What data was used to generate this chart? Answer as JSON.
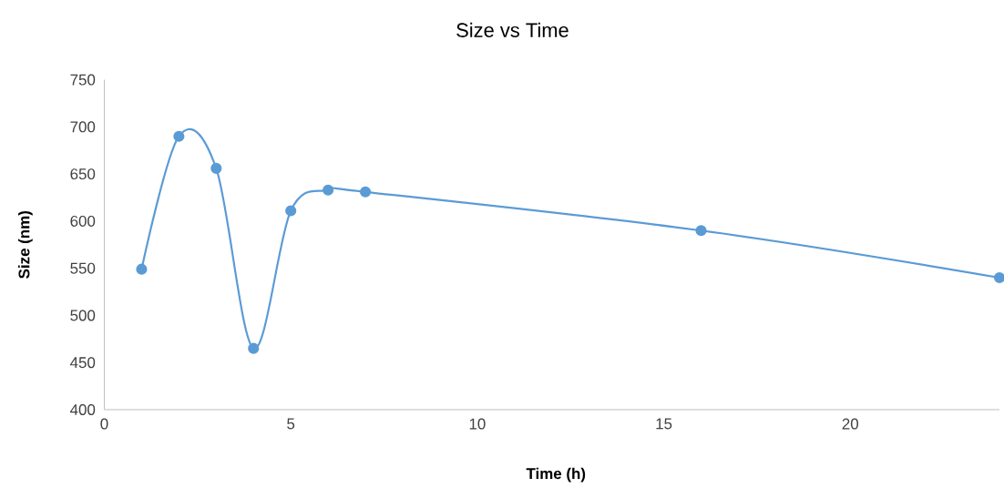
{
  "chart_data": {
    "type": "line",
    "title": "Size vs Time",
    "xlabel": "Time (h)",
    "ylabel": "Size (nm)",
    "x": [
      1,
      2,
      3,
      4,
      5,
      6,
      7,
      16,
      24
    ],
    "series": [
      {
        "color": "#5b9bd5",
        "values": [
          549,
          690,
          656,
          465,
          611,
          633,
          631,
          590,
          540
        ]
      }
    ],
    "xlim": [
      0,
      24
    ],
    "ylim": [
      400,
      750
    ],
    "xticks": [
      0,
      5,
      10,
      15,
      20
    ],
    "yticks": [
      400,
      450,
      500,
      550,
      600,
      650,
      700,
      750
    ],
    "marker": "circle",
    "line_style": "solid"
  }
}
